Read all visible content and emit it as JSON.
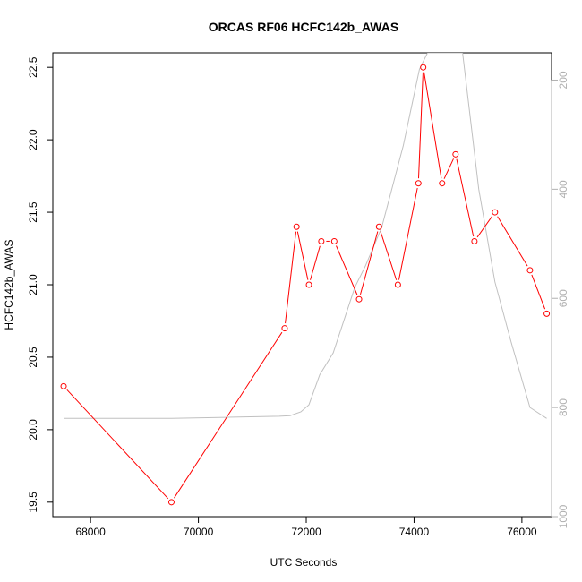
{
  "chart_data": {
    "type": "line",
    "title": "ORCAS RF06 HCFC142b_AWAS",
    "xlabel": "UTC Seconds",
    "ylabel": "HCFC142b_AWAS",
    "y2label": "",
    "xlim": [
      67300,
      76550
    ],
    "ylim": [
      19.4,
      22.6
    ],
    "y2lim": [
      1000,
      150
    ],
    "y2_reversed": true,
    "x_ticks": [
      68000,
      70000,
      72000,
      74000,
      76000
    ],
    "y_ticks": [
      19.5,
      20.0,
      20.5,
      21.0,
      21.5,
      22.0,
      22.5
    ],
    "y_tick_labels": [
      "19.5",
      "20.0",
      "20.5",
      "21.0",
      "21.5",
      "22.0",
      "22.5"
    ],
    "y2_ticks": [
      200,
      400,
      600,
      800,
      1000
    ],
    "grid": false,
    "series": [
      {
        "color": "#ff0000",
        "marker": "open-circle",
        "axis": "left",
        "x": [
          67500,
          69500,
          71600,
          71820,
          72050,
          72280,
          72520,
          72980,
          73350,
          73700,
          74080,
          74170,
          74520,
          74770,
          75120,
          75500,
          76150,
          76460
        ],
        "y": [
          20.3,
          19.5,
          20.7,
          21.4,
          21.0,
          21.3,
          21.3,
          20.9,
          21.4,
          21.0,
          21.7,
          22.5,
          21.7,
          21.9,
          21.3,
          21.5,
          21.1,
          20.8
        ]
      },
      {
        "color": "#c0c0c0",
        "marker": "none",
        "axis": "right",
        "x": [
          67500,
          68500,
          69500,
          70500,
          71500,
          71700,
          71900,
          72050,
          72250,
          72500,
          72900,
          73100,
          73400,
          73800,
          74100,
          74250,
          74400,
          74600,
          74900,
          75200,
          75500,
          75800,
          76150,
          76460
        ],
        "y": [
          820,
          820,
          820,
          818,
          816,
          815,
          808,
          795,
          740,
          700,
          580,
          540,
          470,
          320,
          180,
          150,
          150,
          150,
          150,
          400,
          570,
          680,
          800,
          820
        ]
      }
    ]
  }
}
